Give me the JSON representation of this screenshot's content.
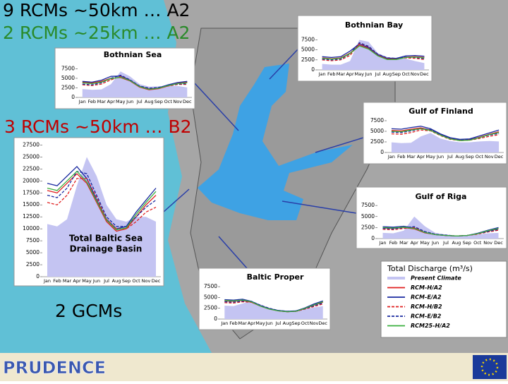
{
  "headings": {
    "line1": "9 RCMs ~50km … A2",
    "line2": "2 RCMs ~25km … A2",
    "line3": "3 RCMs ~50km … B2",
    "line4": "2 GCMs"
  },
  "logo": "PRUDENCE",
  "legend": {
    "title": "Total Discharge (m³/s)",
    "entries": [
      {
        "name": "Present Climate",
        "color": "#c4c4f2",
        "dash": "solid"
      },
      {
        "name": "RCM-H/A2",
        "color": "#e02020",
        "dash": "solid"
      },
      {
        "name": "RCM-E/A2",
        "color": "#1a2aa0",
        "dash": "solid"
      },
      {
        "name": "RCM-H/B2",
        "color": "#e02020",
        "dash": "dashed"
      },
      {
        "name": "RCM-E/B2",
        "color": "#1a2aa0",
        "dash": "dashed"
      },
      {
        "name": "RCM25-H/A2",
        "color": "#3cb040",
        "dash": "solid"
      }
    ]
  },
  "chart_data": [
    {
      "type": "line",
      "title": "Bothnian Sea",
      "categories": [
        "Jan",
        "Feb",
        "Mar",
        "Apr",
        "May",
        "Jun",
        "Jul",
        "Aug",
        "Sep",
        "Oct",
        "Nov",
        "Dec"
      ],
      "ylim": [
        0,
        8500
      ],
      "yticks": [
        0,
        2500,
        5000,
        7500
      ],
      "series": [
        {
          "values": [
            2200,
            2000,
            2100,
            3500,
            6800,
            5500,
            3500,
            2800,
            2900,
            3100,
            3000,
            2600
          ]
        },
        {
          "values": [
            4000,
            3800,
            4200,
            5000,
            5200,
            4300,
            2700,
            2000,
            2300,
            3000,
            3700,
            4000
          ]
        },
        {
          "values": [
            4200,
            4000,
            4500,
            5500,
            5600,
            4500,
            2900,
            2200,
            2500,
            3300,
            3900,
            4200
          ]
        },
        {
          "values": [
            3300,
            3100,
            3500,
            4600,
            5500,
            4500,
            2900,
            2300,
            2500,
            3000,
            3400,
            3400
          ]
        },
        {
          "values": [
            3500,
            3300,
            3800,
            5000,
            5800,
            4600,
            3000,
            2400,
            2600,
            3200,
            3500,
            3600
          ]
        },
        {
          "values": [
            3800,
            3600,
            4000,
            4900,
            5300,
            4400,
            2800,
            2100,
            2400,
            3100,
            3600,
            3800
          ]
        }
      ]
    },
    {
      "type": "line",
      "title": "Bothnian Bay",
      "categories": [
        "Jan",
        "Feb",
        "Mar",
        "Apr",
        "May",
        "Jun",
        "Jul",
        "Aug",
        "Sep",
        "Oct",
        "Nov",
        "Dec"
      ],
      "ylim": [
        0,
        9000
      ],
      "yticks": [
        0,
        2500,
        5000,
        7500
      ],
      "series": [
        {
          "values": [
            1500,
            1300,
            1300,
            2200,
            7500,
            7000,
            4200,
            3200,
            3000,
            2800,
            2200,
            1700
          ]
        },
        {
          "values": [
            3000,
            2800,
            3000,
            4200,
            6200,
            5400,
            3600,
            2700,
            2700,
            3200,
            3300,
            3100
          ]
        },
        {
          "values": [
            3300,
            3100,
            3300,
            4700,
            6500,
            5600,
            3800,
            2900,
            2900,
            3500,
            3600,
            3400
          ]
        },
        {
          "values": [
            2500,
            2300,
            2500,
            3600,
            6600,
            5800,
            3800,
            2900,
            2800,
            3000,
            2900,
            2600
          ]
        },
        {
          "values": [
            2700,
            2500,
            2700,
            4000,
            6800,
            5900,
            3900,
            3000,
            2900,
            3200,
            3100,
            2800
          ]
        },
        {
          "values": [
            2900,
            2700,
            2900,
            4100,
            6000,
            5200,
            3500,
            2600,
            2600,
            3100,
            3200,
            3000
          ]
        }
      ]
    },
    {
      "type": "line",
      "title": "Gulf of Finland",
      "categories": [
        "Jan",
        "Feb",
        "Mar",
        "Apr",
        "May",
        "Jun",
        "Jul",
        "Aug",
        "Sep",
        "Oct",
        "Nov",
        "Dec"
      ],
      "ylim": [
        0,
        8000
      ],
      "yticks": [
        0,
        2500,
        5000,
        7500
      ],
      "series": [
        {
          "values": [
            2400,
            2200,
            2300,
            3800,
            4600,
            3300,
            2700,
            2400,
            2400,
            2600,
            2700,
            2600
          ]
        },
        {
          "values": [
            5200,
            5100,
            5500,
            5800,
            5300,
            4200,
            3300,
            2900,
            3000,
            3600,
            4300,
            4900
          ]
        },
        {
          "values": [
            5600,
            5500,
            5900,
            6200,
            5600,
            4400,
            3500,
            3100,
            3200,
            3900,
            4600,
            5300
          ]
        },
        {
          "values": [
            4400,
            4300,
            4700,
            5300,
            5100,
            4000,
            3100,
            2800,
            2900,
            3300,
            3800,
            4200
          ]
        },
        {
          "values": [
            4800,
            4700,
            5100,
            5600,
            5400,
            4200,
            3300,
            3000,
            3100,
            3500,
            4100,
            4500
          ]
        },
        {
          "values": [
            5000,
            4900,
            5300,
            5600,
            5200,
            4100,
            3200,
            2800,
            2900,
            3500,
            4200,
            4700
          ]
        }
      ]
    },
    {
      "type": "line",
      "title": "Gulf of Riga",
      "categories": [
        "Jan",
        "Feb",
        "Mar",
        "Apr",
        "May",
        "Jun",
        "Jul",
        "Aug",
        "Sep",
        "Oct",
        "Nov",
        "Dec"
      ],
      "ylim": [
        0,
        8000
      ],
      "yticks": [
        0,
        2500,
        5000,
        7500
      ],
      "series": [
        {
          "values": [
            1300,
            1200,
            1800,
            5000,
            2800,
            1300,
            900,
            700,
            700,
            900,
            1200,
            1300
          ]
        },
        {
          "values": [
            2400,
            2300,
            2500,
            2200,
            1300,
            900,
            700,
            600,
            700,
            1100,
            1700,
            2200
          ]
        },
        {
          "values": [
            2700,
            2600,
            2800,
            2400,
            1400,
            900,
            700,
            600,
            700,
            1200,
            1900,
            2500
          ]
        },
        {
          "values": [
            2100,
            2000,
            2300,
            2500,
            1500,
            1000,
            700,
            600,
            700,
            1000,
            1500,
            1900
          ]
        },
        {
          "values": [
            2300,
            2200,
            2500,
            2700,
            1600,
            1000,
            800,
            600,
            700,
            1100,
            1600,
            2100
          ]
        },
        {
          "values": [
            2500,
            2400,
            2600,
            2300,
            1400,
            900,
            700,
            600,
            700,
            1100,
            1800,
            2300
          ]
        }
      ]
    },
    {
      "type": "line",
      "title": "Baltic Proper",
      "categories": [
        "Jan",
        "Feb",
        "Mar",
        "Apr",
        "May",
        "Jun",
        "Jul",
        "Aug",
        "Sep",
        "Oct",
        "Nov",
        "Dec"
      ],
      "ylim": [
        0,
        8500
      ],
      "yticks": [
        0,
        2500,
        5000,
        7500
      ],
      "series": [
        {
          "values": [
            3100,
            3000,
            3600,
            4200,
            3400,
            2500,
            2000,
            1800,
            1800,
            2200,
            2700,
            3000
          ]
        },
        {
          "values": [
            4200,
            4100,
            4300,
            3900,
            3000,
            2300,
            1900,
            1700,
            1800,
            2400,
            3200,
            3900
          ]
        },
        {
          "values": [
            4500,
            4400,
            4600,
            4100,
            3100,
            2400,
            2000,
            1800,
            1900,
            2600,
            3500,
            4200
          ]
        },
        {
          "values": [
            3800,
            3700,
            4000,
            3900,
            3100,
            2400,
            1900,
            1700,
            1800,
            2300,
            2900,
            3500
          ]
        },
        {
          "values": [
            4000,
            3900,
            4200,
            4100,
            3200,
            2500,
            2000,
            1800,
            1900,
            2400,
            3100,
            3700
          ]
        },
        {
          "values": [
            4300,
            4200,
            4400,
            4000,
            3000,
            2300,
            1900,
            1700,
            1800,
            2500,
            3300,
            4000
          ]
        }
      ]
    },
    {
      "type": "line",
      "title": [
        "Total Baltic Sea",
        "Drainage Basin"
      ],
      "categories": [
        "Jan",
        "Feb",
        "Mar",
        "Apr",
        "May",
        "Jun",
        "Jul",
        "Aug",
        "Sep",
        "Oct",
        "Nov",
        "Dec"
      ],
      "ylim": [
        0,
        28000
      ],
      "yticks": [
        0,
        2500,
        5000,
        7500,
        10000,
        12500,
        15000,
        17500,
        20000,
        22500,
        25000,
        27500
      ],
      "series": [
        {
          "values": [
            11000,
            10500,
            12000,
            19000,
            25000,
            21000,
            15000,
            12000,
            11500,
            12500,
            12500,
            11500
          ]
        },
        {
          "values": [
            18000,
            17500,
            19500,
            21500,
            19500,
            15500,
            11500,
            9500,
            10000,
            12500,
            15000,
            17000
          ]
        },
        {
          "values": [
            19500,
            19000,
            21000,
            23000,
            20500,
            16000,
            12000,
            10000,
            10500,
            13500,
            16000,
            18500
          ]
        },
        {
          "values": [
            15500,
            15000,
            17000,
            20500,
            20500,
            16500,
            12000,
            10000,
            10000,
            11500,
            13500,
            14500
          ]
        },
        {
          "values": [
            17000,
            16500,
            18500,
            22000,
            21500,
            17000,
            12500,
            10500,
            10500,
            12500,
            14500,
            16000
          ]
        },
        {
          "values": [
            18500,
            18000,
            20000,
            22000,
            19800,
            15800,
            11800,
            9800,
            10200,
            13000,
            15500,
            17800
          ]
        }
      ]
    }
  ]
}
